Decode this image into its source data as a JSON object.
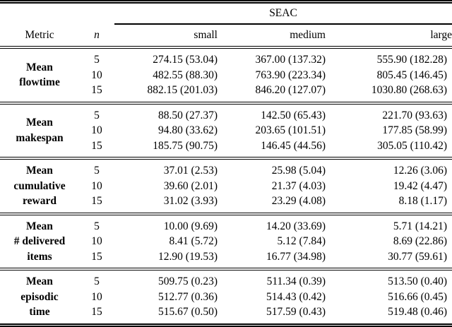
{
  "table": {
    "group_header": "SEAC",
    "headers": {
      "metric": "Metric",
      "n": "n",
      "small": "small",
      "medium": "medium",
      "large": "large"
    },
    "blocks": [
      {
        "metric": "Mean flowtime",
        "lines": [
          "Mean",
          "flowtime"
        ],
        "rows": [
          {
            "n": "5",
            "small": "274.15 (53.04)",
            "medium": "367.00 (137.32)",
            "large": "555.90 (182.28)"
          },
          {
            "n": "10",
            "small": "482.55 (88.30)",
            "medium": "763.90 (223.34)",
            "large": "805.45 (146.45)"
          },
          {
            "n": "15",
            "small": "882.15 (201.03)",
            "medium": "846.20 (127.07)",
            "large": "1030.80 (268.63)"
          }
        ]
      },
      {
        "metric": "Mean makespan",
        "lines": [
          "Mean",
          "makespan"
        ],
        "rows": [
          {
            "n": "5",
            "small": "88.50 (27.37)",
            "medium": "142.50 (65.43)",
            "large": "221.70 (93.63)"
          },
          {
            "n": "10",
            "small": "94.80 (33.62)",
            "medium": "203.65 (101.51)",
            "large": "177.85 (58.99)"
          },
          {
            "n": "15",
            "small": "185.75 (90.75)",
            "medium": "146.45 (44.56)",
            "large": "305.05 (110.42)"
          }
        ]
      },
      {
        "metric": "Mean cumulative reward",
        "lines": [
          "Mean",
          "cumulative",
          "reward"
        ],
        "rows": [
          {
            "n": "5",
            "small": "37.01 (2.53)",
            "medium": "25.98 (5.04)",
            "large": "12.26 (3.06)"
          },
          {
            "n": "10",
            "small": "39.60 (2.01)",
            "medium": "21.37 (4.03)",
            "large": "19.42 (4.47)"
          },
          {
            "n": "15",
            "small": "31.02 (3.93)",
            "medium": "23.29 (4.08)",
            "large": "8.18 (1.17)"
          }
        ]
      },
      {
        "metric": "Mean # delivered items",
        "lines": [
          "Mean",
          "# delivered",
          "items"
        ],
        "rows": [
          {
            "n": "5",
            "small": "10.00 (9.69)",
            "medium": "14.20 (33.69)",
            "large": "5.71 (14.21)"
          },
          {
            "n": "10",
            "small": "8.41 (5.72)",
            "medium": "5.12 (7.84)",
            "large": "8.69 (22.86)"
          },
          {
            "n": "15",
            "small": "12.90 (19.53)",
            "medium": "16.77 (34.98)",
            "large": "30.77 (59.61)"
          }
        ]
      },
      {
        "metric": "Mean episodic time",
        "lines": [
          "Mean",
          "episodic",
          "time"
        ],
        "rows": [
          {
            "n": "5",
            "small": "509.75 (0.23)",
            "medium": "511.34 (0.39)",
            "large": "513.50 (0.40)"
          },
          {
            "n": "10",
            "small": "512.77 (0.36)",
            "medium": "514.43 (0.42)",
            "large": "516.66 (0.45)"
          },
          {
            "n": "15",
            "small": "515.67 (0.50)",
            "medium": "517.59 (0.43)",
            "large": "519.48 (0.46)"
          }
        ]
      }
    ]
  }
}
